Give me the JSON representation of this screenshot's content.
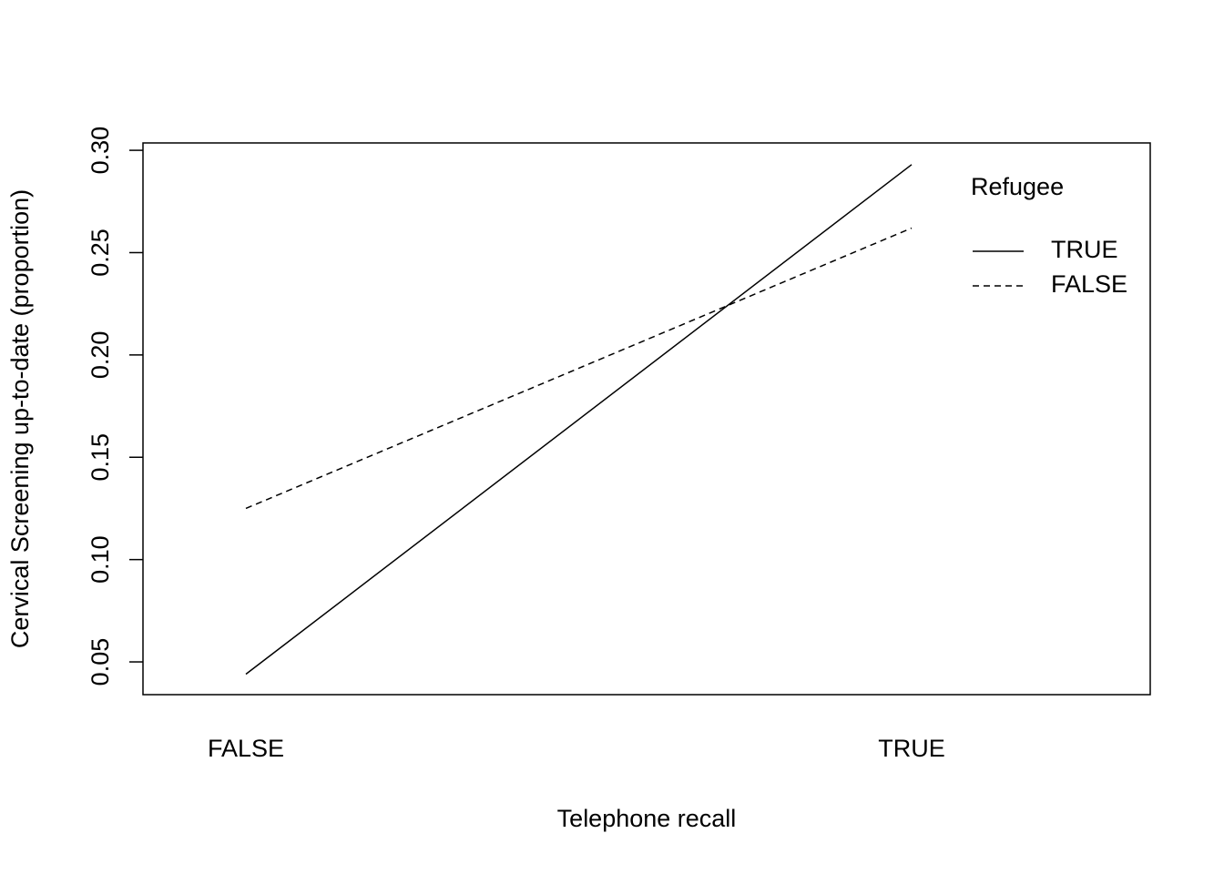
{
  "chart_data": {
    "type": "line",
    "x_label": "Telephone recall",
    "y_label": "Cervical Screening up-to-date (proportion)",
    "categories": [
      "FALSE",
      "TRUE"
    ],
    "series": [
      {
        "name": "TRUE",
        "color": "#000000",
        "linestyle": "solid",
        "values": [
          0.044,
          0.293
        ]
      },
      {
        "name": "FALSE",
        "color": "#000000",
        "linestyle": "dashed",
        "values": [
          0.125,
          0.262
        ]
      }
    ],
    "legend_title": "Refugee",
    "legend": "topright",
    "ylim": [
      0.034,
      0.3036
    ],
    "yticks": [
      {
        "value": 0.05,
        "label": "0.05"
      },
      {
        "value": 0.1,
        "label": "0.10"
      },
      {
        "value": 0.15,
        "label": "0.15"
      },
      {
        "value": 0.2,
        "label": "0.20"
      },
      {
        "value": 0.25,
        "label": "0.25"
      },
      {
        "value": 0.3,
        "label": "0.30"
      }
    ]
  }
}
